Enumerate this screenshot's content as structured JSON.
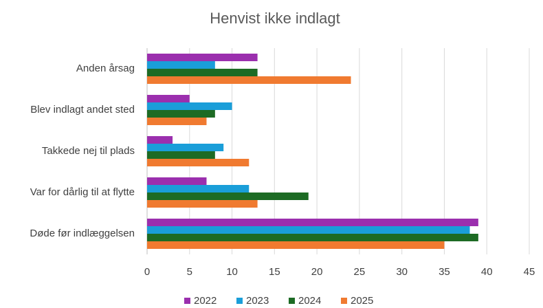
{
  "chart_data": {
    "type": "hbar",
    "title": "Henvist ikke indlagt",
    "categories": [
      "Anden årsag",
      "Blev indlagt andet sted",
      "Takkede nej til plads",
      "Var for dårlig til at flytte",
      "Døde før indlæggelsen"
    ],
    "series": [
      {
        "name": "2022",
        "color": "#9b2fae",
        "values": [
          13,
          5,
          3,
          7,
          39
        ]
      },
      {
        "name": "2023",
        "color": "#1a9ed9",
        "values": [
          8,
          10,
          9,
          12,
          38
        ]
      },
      {
        "name": "2024",
        "color": "#1d6b24",
        "values": [
          13,
          8,
          8,
          19,
          39
        ]
      },
      {
        "name": "2025",
        "color": "#f07a30",
        "values": [
          24,
          7,
          12,
          13,
          35
        ]
      }
    ],
    "xlim": [
      0,
      45
    ],
    "xticks": [
      0,
      5,
      10,
      15,
      20,
      25,
      30,
      35,
      40,
      45
    ],
    "grid": true,
    "legend": "bottom"
  }
}
